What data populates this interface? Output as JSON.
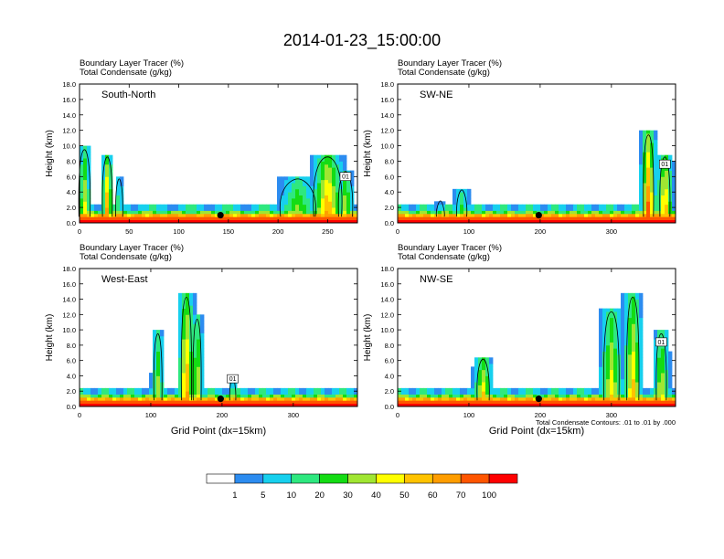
{
  "figure_title": "2014-01-23_15:00:00",
  "colors": {
    "palette": [
      "#ffffff",
      "#2c8cf0",
      "#17d0ee",
      "#2ee87f",
      "#14dc14",
      "#a0e632",
      "#ffff00",
      "#ffc300",
      "#ff9d00",
      "#ff5500",
      "#ff0000"
    ],
    "contour": "#000000",
    "station": "#000000"
  },
  "chart_data": [
    {
      "type": "heatmap",
      "id": "sn",
      "panel_label": "South-North",
      "header_line1": "Boundary Layer Tracer   (%)",
      "header_line2": "Total Condensate   (g/kg)",
      "ylabel": "Height (km)",
      "xlabel": "",
      "xlim": [
        0,
        280
      ],
      "ylim": [
        0,
        18
      ],
      "xticks": [
        0,
        50,
        100,
        150,
        200,
        250
      ],
      "yticks": [
        0.0,
        2.0,
        4.0,
        6.0,
        8.0,
        10.0,
        12.0,
        14.0,
        16.0,
        18.0
      ],
      "ytick_labels": [
        "0.0",
        "2.0",
        "4.0",
        "6.0",
        "8.0",
        "10.0",
        "12.0",
        "14.0",
        "16.0",
        "18.0"
      ],
      "station_x": 142,
      "station_y": 1.0,
      "contour_label": "01",
      "plumes": [
        {
          "x": 5,
          "w": 8,
          "h": 10.0,
          "i": 0.7
        },
        {
          "x": 28,
          "w": 7,
          "h": 9.0,
          "i": 0.9
        },
        {
          "x": 40,
          "w": 5,
          "h": 6.0,
          "i": 0.5
        },
        {
          "x": 220,
          "w": 25,
          "h": 6.0,
          "i": 0.6
        },
        {
          "x": 250,
          "w": 20,
          "h": 9.0,
          "i": 0.9
        },
        {
          "x": 268,
          "w": 10,
          "h": 7.0,
          "i": 0.7
        }
      ]
    },
    {
      "type": "heatmap",
      "id": "swne",
      "panel_label": "SW-NE",
      "header_line1": "Boundary Layer Tracer   (%)",
      "header_line2": "Total Condensate   (g/kg)",
      "ylabel": "Height (km)",
      "xlabel": "",
      "xlim": [
        0,
        390
      ],
      "ylim": [
        0,
        18
      ],
      "xticks": [
        0,
        100,
        200,
        300
      ],
      "yticks": [
        0.0,
        2.0,
        4.0,
        6.0,
        8.0,
        10.0,
        12.0,
        14.0,
        16.0,
        18.0
      ],
      "ytick_labels": [
        "0.0",
        "2.0",
        "4.0",
        "6.0",
        "8.0",
        "10.0",
        "12.0",
        "14.0",
        "16.0",
        "18.0"
      ],
      "station_x": 198,
      "station_y": 1.0,
      "contour_label": "01",
      "plumes": [
        {
          "x": 90,
          "w": 10,
          "h": 4.5,
          "i": 0.5
        },
        {
          "x": 60,
          "w": 8,
          "h": 3.0,
          "i": 0.3
        },
        {
          "x": 352,
          "w": 10,
          "h": 12.0,
          "i": 1.0
        },
        {
          "x": 375,
          "w": 10,
          "h": 9.0,
          "i": 0.9
        }
      ]
    },
    {
      "type": "heatmap",
      "id": "we",
      "panel_label": "West-East",
      "header_line1": "Boundary Layer Tracer   (%)",
      "header_line2": "Total Condensate   (g/kg)",
      "ylabel": "Height (km)",
      "xlabel": "Grid Point (dx=15km)",
      "xlim": [
        0,
        390
      ],
      "ylim": [
        0,
        18
      ],
      "xticks": [
        0,
        100,
        200,
        300
      ],
      "yticks": [
        0.0,
        2.0,
        4.0,
        6.0,
        8.0,
        10.0,
        12.0,
        14.0,
        16.0,
        18.0
      ],
      "ytick_labels": [
        "0.0",
        "2.0",
        "4.0",
        "6.0",
        "8.0",
        "10.0",
        "12.0",
        "14.0",
        "16.0",
        "18.0"
      ],
      "station_x": 198,
      "station_y": 1.0,
      "contour_label": "01",
      "plumes": [
        {
          "x": 110,
          "w": 8,
          "h": 10.0,
          "i": 0.6
        },
        {
          "x": 150,
          "w": 10,
          "h": 15.0,
          "i": 0.9
        },
        {
          "x": 165,
          "w": 8,
          "h": 12.0,
          "i": 0.7
        },
        {
          "x": 215,
          "w": 6,
          "h": 4.0,
          "i": 0.5
        }
      ]
    },
    {
      "type": "heatmap",
      "id": "nwse",
      "panel_label": "NW-SE",
      "header_line1": "Boundary Layer Tracer   (%)",
      "header_line2": "Total Condensate   (g/kg)",
      "ylabel": "Height (km)",
      "xlabel": "Grid Point (dx=15km)",
      "xlim": [
        0,
        390
      ],
      "ylim": [
        0,
        18
      ],
      "xticks": [
        0,
        100,
        200,
        300
      ],
      "yticks": [
        0.0,
        2.0,
        4.0,
        6.0,
        8.0,
        10.0,
        12.0,
        14.0,
        16.0,
        18.0
      ],
      "ytick_labels": [
        "0.0",
        "2.0",
        "4.0",
        "6.0",
        "8.0",
        "10.0",
        "12.0",
        "14.0",
        "16.0",
        "18.0"
      ],
      "station_x": 198,
      "station_y": 1.0,
      "contour_label": "01",
      "contour_note": "Total Condensate Contours: .01 to .01 by .000",
      "plumes": [
        {
          "x": 120,
          "w": 12,
          "h": 6.5,
          "i": 0.8
        },
        {
          "x": 300,
          "w": 15,
          "h": 13.0,
          "i": 0.7
        },
        {
          "x": 330,
          "w": 12,
          "h": 15.0,
          "i": 0.8
        },
        {
          "x": 370,
          "w": 10,
          "h": 10.0,
          "i": 0.7
        }
      ]
    }
  ],
  "colorbar": {
    "labels": [
      "1",
      "5",
      "10",
      "20",
      "30",
      "40",
      "50",
      "60",
      "70",
      "100"
    ]
  }
}
